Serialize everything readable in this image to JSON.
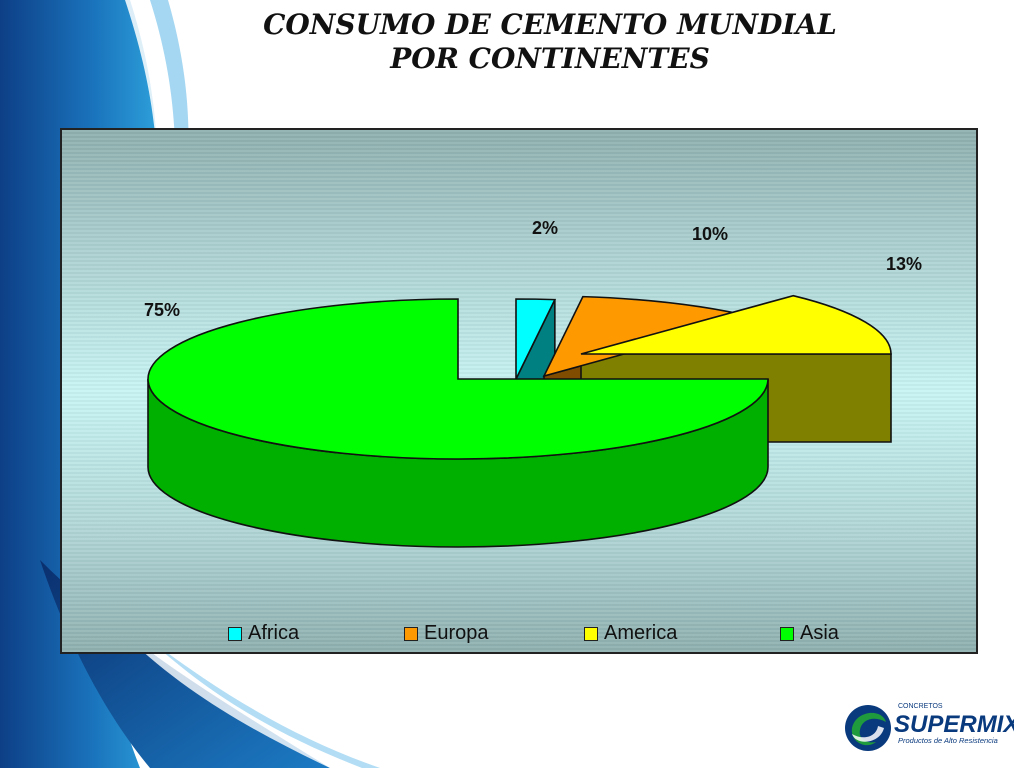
{
  "slide": {
    "title_line1": "CONSUMO DE CEMENTO MUNDIAL",
    "title_line2": "POR CONTINENTES"
  },
  "chart_data": {
    "type": "pie",
    "title": "CONSUMO DE CEMENTO MUNDIAL POR CONTINENTES",
    "style": "3d-exploded",
    "legend_position": "bottom",
    "categories": [
      "Africa",
      "Europa",
      "America",
      "Asia"
    ],
    "values": [
      2,
      10,
      13,
      75
    ],
    "labels": [
      "2%",
      "10%",
      "13%",
      "75%"
    ],
    "colors": [
      "#00ffff",
      "#ff9900",
      "#ffff00",
      "#00ff00"
    ],
    "side_colors": [
      "#008080",
      "#804c00",
      "#808000",
      "#00b000"
    ]
  },
  "logo": {
    "small_text": "CONCRETOS",
    "brand": "SUPERMIX",
    "tagline": "Productos de Alto Resistencia"
  }
}
